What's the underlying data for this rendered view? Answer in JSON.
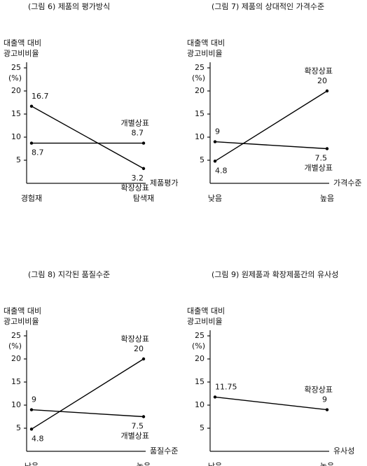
{
  "chart_data": [
    {
      "type": "line",
      "title": "(그림 6) 제품의 평가방식",
      "y_label": [
        "대출액 대비",
        "광고비비율"
      ],
      "y_unit": "(%)",
      "x_label": "제품평가",
      "categories": [
        "경험재",
        "탐색재"
      ],
      "series": [
        {
          "name": "확장상표",
          "color": "#000000",
          "values": [
            16.7,
            3.2
          ]
        },
        {
          "name": "개별상표",
          "color": "#000000",
          "values": [
            8.7,
            8.7
          ]
        }
      ],
      "ylim": [
        0,
        25
      ],
      "yticks": [
        5,
        10,
        15,
        20,
        25
      ]
    },
    {
      "type": "line",
      "title": "(그림 7) 제품의 상대적인 가격수준",
      "y_label": [
        "대출액 대비",
        "광고비비율"
      ],
      "y_unit": "(%)",
      "x_label": "가격수준",
      "categories": [
        "낮음",
        "높음"
      ],
      "series": [
        {
          "name": "확장상표",
          "color": "#000000",
          "values": [
            4.8,
            20
          ]
        },
        {
          "name": "개별상표",
          "color": "#000000",
          "values": [
            9,
            7.5
          ]
        }
      ],
      "ylim": [
        0,
        25
      ],
      "yticks": [
        5,
        10,
        15,
        20,
        25
      ]
    },
    {
      "type": "line",
      "title": "(그림 8) 지각된 품질수준",
      "y_label": [
        "대출액 대비",
        "광고비비율"
      ],
      "y_unit": "(%)",
      "x_label": "품질수준",
      "categories": [
        "낮음",
        "높음"
      ],
      "series": [
        {
          "name": "확장상표",
          "color": "#000000",
          "values": [
            4.8,
            20
          ]
        },
        {
          "name": "개별상표",
          "color": "#000000",
          "values": [
            9,
            7.5
          ]
        }
      ],
      "ylim": [
        0,
        25
      ],
      "yticks": [
        5,
        10,
        15,
        20,
        25
      ]
    },
    {
      "type": "line",
      "title": "(그림 9) 원제품과 확장제품간의 유사성",
      "y_label": [
        "대출액 대비",
        "광고비비율"
      ],
      "y_unit": "(%)",
      "x_label": "유사성",
      "categories": [
        "낮음",
        "높음"
      ],
      "series": [
        {
          "name": "확장상표",
          "color": "#000000",
          "values": [
            11.75,
            9
          ]
        }
      ],
      "ylim": [
        0,
        25
      ],
      "yticks": [
        5,
        10,
        15,
        20,
        25
      ]
    }
  ]
}
